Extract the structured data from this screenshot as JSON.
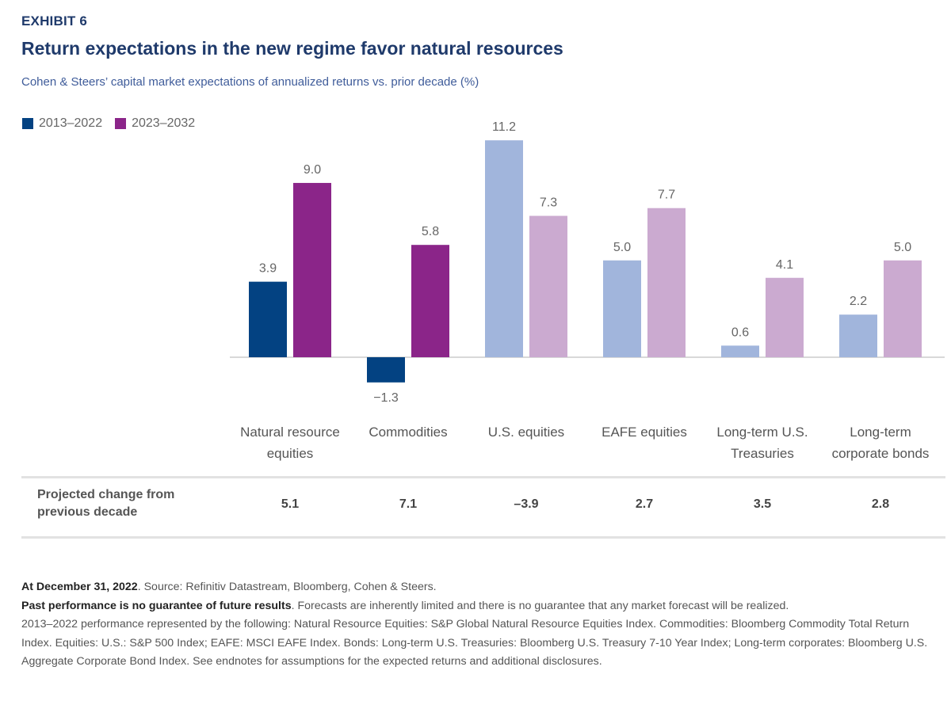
{
  "header": {
    "exhibit": "EXHIBIT 6",
    "title": "Return expectations in the new regime favor natural resources",
    "subtitle": "Cohen & Steers’ capital market expectations of annualized returns vs. prior decade (%)"
  },
  "legend": [
    {
      "label": "2013–2022",
      "color": "#034282"
    },
    {
      "label": "2023–2032",
      "color": "#8b2589"
    }
  ],
  "colors": {
    "series1_strong": "#034282",
    "series2_strong": "#8b2589",
    "series1_light": "#a1b5dc",
    "series2_light": "#cbaad0",
    "baseline": "#d8d8d8",
    "label": "#666666"
  },
  "chart_data": {
    "type": "bar",
    "title": "Return expectations in the new regime favor natural resources",
    "subtitle": "Cohen & Steers’ capital market expectations of annualized returns vs. prior decade (%)",
    "xlabel": "",
    "ylabel": "",
    "ylim": [
      -1.5,
      11.5
    ],
    "grid": false,
    "legend_position": "top-left",
    "categories": [
      "Natural resource equities",
      "Commodities",
      "U.S. equities",
      "EAFE equities",
      "Long-term U.S. Treasuries",
      "Long-term corporate bonds"
    ],
    "category_lines": [
      [
        "Natural resource",
        "equities"
      ],
      [
        "Commodities"
      ],
      [
        "U.S. equities"
      ],
      [
        "EAFE equities"
      ],
      [
        "Long-term U.S.",
        "Treasuries"
      ],
      [
        "Long-term",
        "corporate bonds"
      ]
    ],
    "highlighted_categories": [
      0,
      1
    ],
    "series": [
      {
        "name": "2013–2022",
        "values": [
          3.9,
          -1.3,
          11.2,
          5.0,
          0.6,
          2.2
        ],
        "labels": [
          "3.9",
          "−1.3",
          "11.2",
          "5.0",
          "0.6",
          "2.2"
        ]
      },
      {
        "name": "2023–2032",
        "values": [
          9.0,
          5.8,
          7.3,
          7.7,
          4.1,
          5.0
        ],
        "labels": [
          "9.0",
          "5.8",
          "7.3",
          "7.7",
          "4.1",
          "5.0"
        ]
      }
    ]
  },
  "table": {
    "row_label": "Projected change from previous decade",
    "values": [
      "5.1",
      "7.1",
      "–3.9",
      "2.7",
      "3.5",
      "2.8"
    ]
  },
  "notes": {
    "line1_bold": "At December 31, 2022",
    "line1_rest": ". Source: Refinitiv Datastream, Bloomberg, Cohen & Steers.",
    "line2_bold": "Past performance is no guarantee of future results",
    "line2_rest": ". Forecasts are inherently limited and there is no guarantee that any market forecast will be realized.",
    "line3": "2013–2022 performance represented by the following: Natural Resource Equities: S&P Global Natural Resource Equities Index. Commodities: Bloomberg Commodity Total Return Index. Equities: U.S.: S&P 500 Index; EAFE: MSCI EAFE Index. Bonds: Long-term U.S. Treasuries: Bloomberg U.S. Treasury 7-10 Year Index; Long-term corporates: Bloomberg U.S. Aggregate Corporate Bond Index. See endnotes for assumptions for the expected returns and additional disclosures."
  }
}
